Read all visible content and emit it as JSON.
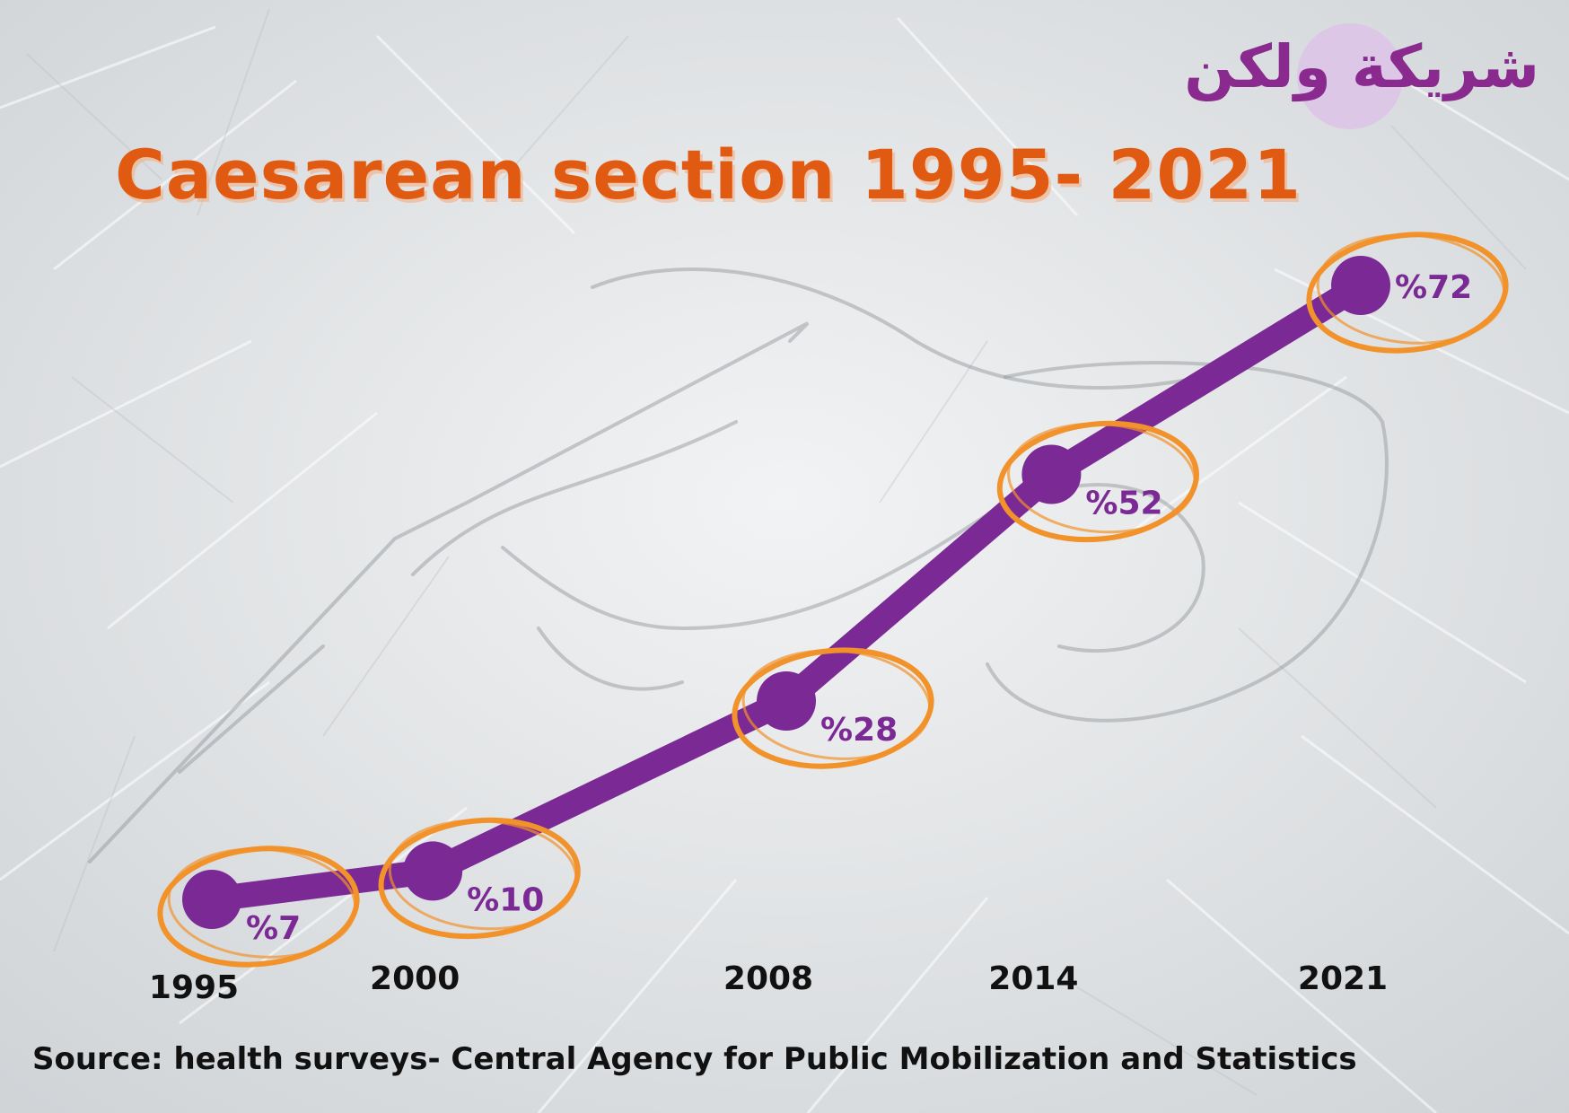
{
  "logo": {
    "text": "شريكة ولكن"
  },
  "colors": {
    "line": "#7b2a95",
    "ring": "#f2922a",
    "title": "#e05a12",
    "label": "#7b2a95",
    "year": "#111111"
  },
  "chart_data": {
    "type": "line",
    "title": "Caesarean section 1995- 2021",
    "categories": [
      "1995",
      "2000",
      "2008",
      "2014",
      "2021"
    ],
    "series": [
      {
        "values": [
          7,
          10,
          28,
          52,
          72
        ],
        "labels": [
          "%7",
          "%10",
          "%28",
          "%52",
          "%72"
        ]
      }
    ],
    "xlabel": "",
    "ylabel": "",
    "grid": false,
    "legend": "none"
  },
  "source": "Source: health surveys- Central Agency for Public Mobilization and Statistics"
}
